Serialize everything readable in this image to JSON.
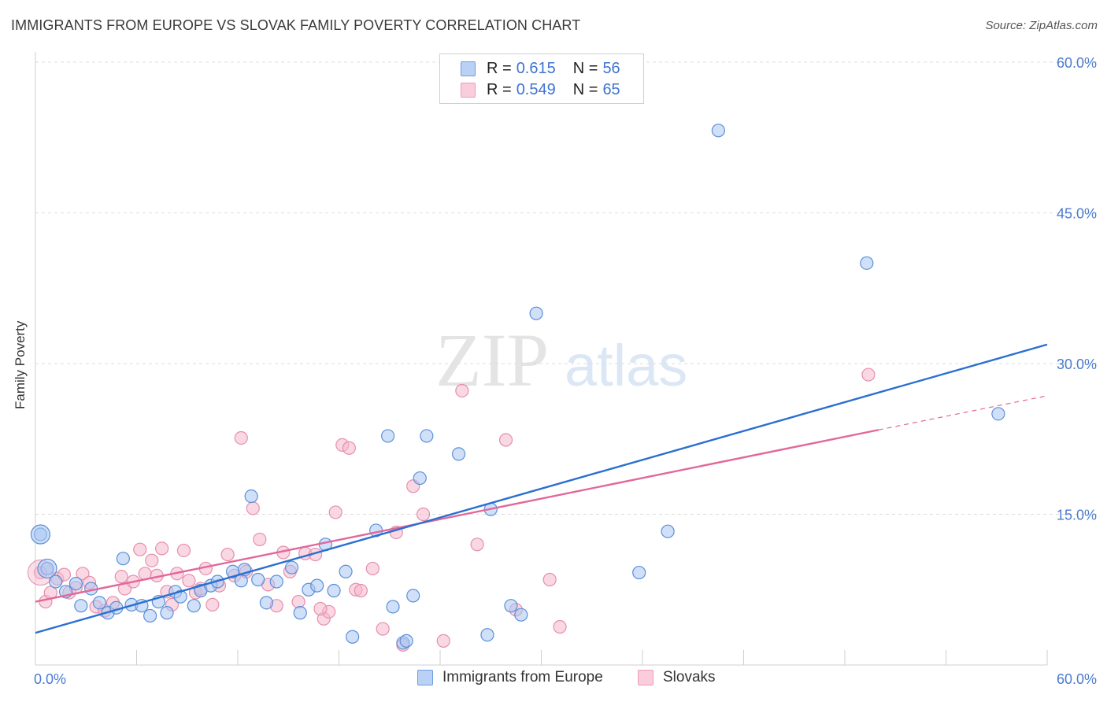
{
  "header": {
    "title": "IMMIGRANTS FROM EUROPE VS SLOVAK FAMILY POVERTY CORRELATION CHART",
    "source": "Source: ZipAtlas.com"
  },
  "watermark": {
    "zip": "ZIP",
    "atlas": "atlas"
  },
  "legend_top": {
    "rows": [
      {
        "r_label": "R = ",
        "r_value": "0.615",
        "n_label": "N = ",
        "n_value": "56"
      },
      {
        "r_label": "R = ",
        "r_value": "0.549",
        "n_label": "N = ",
        "n_value": "65"
      }
    ]
  },
  "legend_bottom": {
    "series1": "Immigrants from Europe",
    "series2": "Slovaks"
  },
  "colors": {
    "blue_fill": "#a9c6f2",
    "blue_stroke": "#5b8fd8",
    "blue_line": "#2b6fd0",
    "pink_fill": "#f6b8cc",
    "pink_stroke": "#e58fab",
    "pink_line": "#e2689a",
    "grid": "#dddddd",
    "tick_label": "#4a7bd0"
  },
  "chart_data": {
    "type": "scatter",
    "ylabel": "Family Poverty",
    "xlim": [
      0,
      60
    ],
    "ylim": [
      0,
      60
    ],
    "x_tick_labels": [
      "0.0%",
      "60.0%"
    ],
    "y_ticks": [
      15,
      30,
      45,
      60
    ],
    "y_tick_labels": [
      "15.0%",
      "30.0%",
      "45.0%",
      "60.0%"
    ],
    "grid": true,
    "legend_position": "top-center",
    "series": [
      {
        "name": "Immigrants from Europe",
        "r": 0.615,
        "n": 56,
        "trend": {
          "x": [
            0,
            60
          ],
          "y": [
            3.2,
            31.9
          ]
        },
        "points": [
          [
            0.3,
            13.0
          ],
          [
            0.7,
            9.6
          ],
          [
            1.2,
            8.3
          ],
          [
            1.8,
            7.3
          ],
          [
            2.4,
            8.1
          ],
          [
            2.7,
            5.9
          ],
          [
            3.3,
            7.6
          ],
          [
            3.8,
            6.2
          ],
          [
            4.3,
            5.2
          ],
          [
            4.8,
            5.7
          ],
          [
            5.2,
            10.6
          ],
          [
            5.7,
            6.0
          ],
          [
            6.3,
            5.9
          ],
          [
            6.8,
            4.9
          ],
          [
            7.3,
            6.3
          ],
          [
            7.8,
            5.2
          ],
          [
            8.3,
            7.3
          ],
          [
            8.6,
            6.8
          ],
          [
            9.4,
            5.9
          ],
          [
            9.8,
            7.4
          ],
          [
            10.4,
            7.9
          ],
          [
            10.8,
            8.3
          ],
          [
            11.7,
            9.3
          ],
          [
            12.2,
            8.4
          ],
          [
            12.4,
            9.5
          ],
          [
            12.8,
            16.8
          ],
          [
            13.2,
            8.5
          ],
          [
            13.7,
            6.2
          ],
          [
            14.3,
            8.3
          ],
          [
            15.2,
            9.7
          ],
          [
            15.7,
            5.2
          ],
          [
            16.2,
            7.5
          ],
          [
            16.7,
            7.9
          ],
          [
            17.2,
            12.0
          ],
          [
            17.7,
            7.4
          ],
          [
            18.4,
            9.3
          ],
          [
            18.8,
            2.8
          ],
          [
            20.2,
            13.4
          ],
          [
            20.9,
            22.8
          ],
          [
            21.2,
            5.8
          ],
          [
            21.8,
            2.2
          ],
          [
            22.4,
            6.9
          ],
          [
            22.8,
            18.6
          ],
          [
            23.2,
            22.8
          ],
          [
            25.1,
            21.0
          ],
          [
            26.8,
            3.0
          ],
          [
            27.0,
            15.5
          ],
          [
            28.2,
            5.9
          ],
          [
            28.8,
            5.0
          ],
          [
            29.7,
            35.0
          ],
          [
            35.8,
            9.2
          ],
          [
            37.5,
            13.3
          ],
          [
            40.5,
            53.2
          ],
          [
            49.3,
            40.0
          ],
          [
            57.1,
            25.0
          ],
          [
            22.0,
            2.4
          ]
        ]
      },
      {
        "name": "Slovaks",
        "r": 0.549,
        "n": 65,
        "trend": {
          "x": [
            0,
            50.0
          ],
          "y": [
            6.3,
            23.4
          ]
        },
        "trend_extension": {
          "x": [
            50.0,
            60
          ],
          "y": [
            23.4,
            26.8
          ]
        },
        "points": [
          [
            0.3,
            9.2
          ],
          [
            0.6,
            6.3
          ],
          [
            0.9,
            7.2
          ],
          [
            1.3,
            8.6
          ],
          [
            1.7,
            9.0
          ],
          [
            2.0,
            7.2
          ],
          [
            2.4,
            7.7
          ],
          [
            2.8,
            9.1
          ],
          [
            3.2,
            8.2
          ],
          [
            3.6,
            5.8
          ],
          [
            4.1,
            5.4
          ],
          [
            4.6,
            6.2
          ],
          [
            5.1,
            8.8
          ],
          [
            5.3,
            7.6
          ],
          [
            5.8,
            8.3
          ],
          [
            6.2,
            11.5
          ],
          [
            6.5,
            9.1
          ],
          [
            6.9,
            10.4
          ],
          [
            7.2,
            8.9
          ],
          [
            7.5,
            11.6
          ],
          [
            7.8,
            7.3
          ],
          [
            8.1,
            6.0
          ],
          [
            8.4,
            9.1
          ],
          [
            8.8,
            11.4
          ],
          [
            9.1,
            8.4
          ],
          [
            9.5,
            7.2
          ],
          [
            9.8,
            7.6
          ],
          [
            10.1,
            9.6
          ],
          [
            10.5,
            6.0
          ],
          [
            10.9,
            7.9
          ],
          [
            11.4,
            11.0
          ],
          [
            11.8,
            8.9
          ],
          [
            12.2,
            22.6
          ],
          [
            12.5,
            9.3
          ],
          [
            12.9,
            15.6
          ],
          [
            13.3,
            12.5
          ],
          [
            13.8,
            8.0
          ],
          [
            14.3,
            5.9
          ],
          [
            14.7,
            11.2
          ],
          [
            15.1,
            9.3
          ],
          [
            15.6,
            6.3
          ],
          [
            16.0,
            11.1
          ],
          [
            16.6,
            11.0
          ],
          [
            17.1,
            4.6
          ],
          [
            17.4,
            5.3
          ],
          [
            17.8,
            15.2
          ],
          [
            18.2,
            21.9
          ],
          [
            18.6,
            21.6
          ],
          [
            19.0,
            7.5
          ],
          [
            19.3,
            7.4
          ],
          [
            20.0,
            9.6
          ],
          [
            20.6,
            3.6
          ],
          [
            21.4,
            13.2
          ],
          [
            21.8,
            2.0
          ],
          [
            22.4,
            17.8
          ],
          [
            23.0,
            15.0
          ],
          [
            24.2,
            2.4
          ],
          [
            25.3,
            27.3
          ],
          [
            26.2,
            12.0
          ],
          [
            27.9,
            22.4
          ],
          [
            28.5,
            5.5
          ],
          [
            30.5,
            8.5
          ],
          [
            31.1,
            3.8
          ],
          [
            49.4,
            28.9
          ],
          [
            16.9,
            5.6
          ]
        ]
      }
    ]
  }
}
